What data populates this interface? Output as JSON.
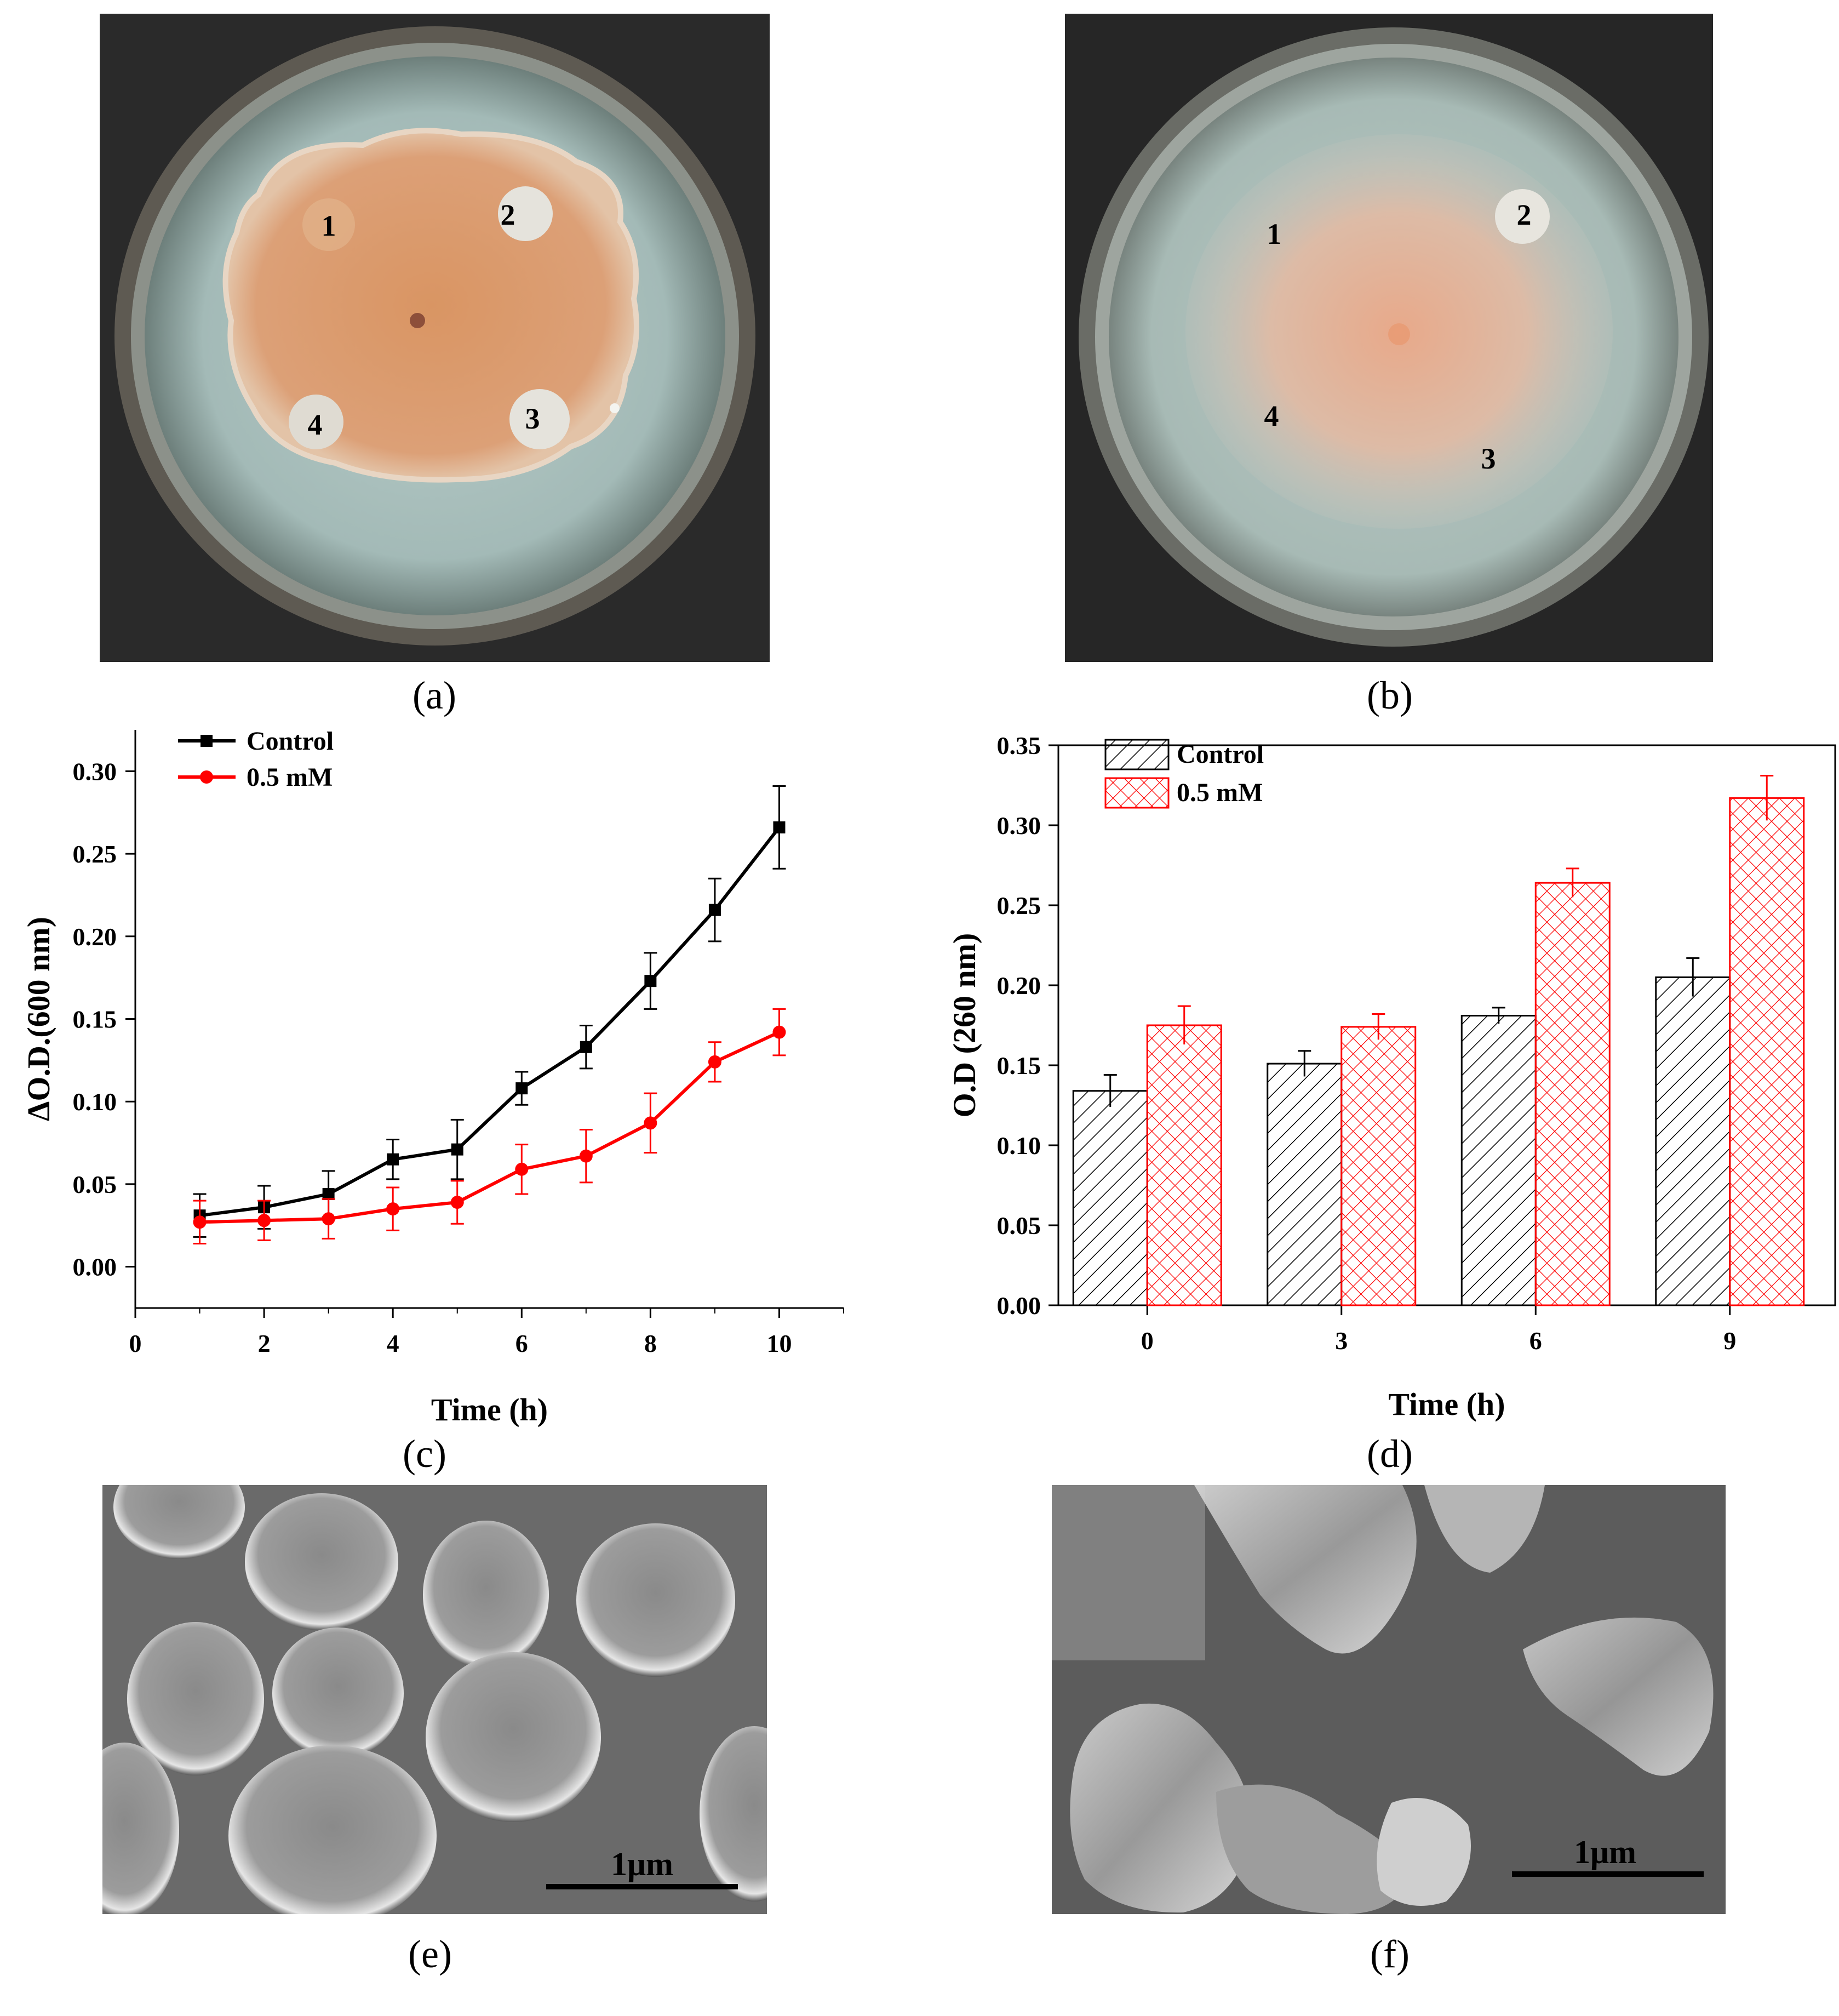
{
  "panels": {
    "a": {
      "caption": "(a)",
      "well_labels": [
        "1",
        "2",
        "3",
        "4"
      ],
      "colors": {
        "background": "#2a2a2a",
        "agar": "#a9c0bd",
        "colony": "#d9996a"
      }
    },
    "b": {
      "caption": "(b)",
      "well_labels": [
        "1",
        "2",
        "3",
        "4"
      ],
      "colors": {
        "background": "#262626",
        "agar": "#a7bcb8",
        "colony": "#e0b9a0"
      }
    },
    "c": {
      "caption": "(c)"
    },
    "d": {
      "caption": "(d)"
    },
    "e": {
      "caption": "(e)",
      "scale_bar": "1μm"
    },
    "f": {
      "caption": "(f)",
      "scale_bar": "1μm"
    }
  },
  "chart_data": [
    {
      "id": "c",
      "type": "line",
      "xlabel": "Time (h)",
      "ylabel": "ΔO.D.(600 nm)",
      "xlim": [
        0,
        11
      ],
      "ylim": [
        -0.025,
        0.325
      ],
      "xticks": [
        "0",
        "2",
        "4",
        "6",
        "8",
        "10"
      ],
      "yticks": [
        "0.00",
        "0.05",
        "0.10",
        "0.15",
        "0.20",
        "0.25",
        "0.30"
      ],
      "grid": false,
      "legend_position": "top-left",
      "x": [
        1,
        2,
        3,
        4,
        5,
        6,
        7,
        8,
        9,
        10
      ],
      "series": [
        {
          "name": "Control",
          "color": "#000000",
          "marker": "square",
          "values": [
            0.031,
            0.036,
            0.044,
            0.065,
            0.071,
            0.108,
            0.133,
            0.173,
            0.216,
            0.266
          ],
          "errors": [
            0.013,
            0.013,
            0.014,
            0.012,
            0.018,
            0.01,
            0.013,
            0.017,
            0.019,
            0.025
          ]
        },
        {
          "name": "0.5 mM",
          "color": "#ff0000",
          "marker": "circle",
          "values": [
            0.027,
            0.028,
            0.029,
            0.035,
            0.039,
            0.059,
            0.067,
            0.087,
            0.124,
            0.142
          ],
          "errors": [
            0.013,
            0.012,
            0.012,
            0.013,
            0.013,
            0.015,
            0.016,
            0.018,
            0.012,
            0.014
          ]
        }
      ]
    },
    {
      "id": "d",
      "type": "bar",
      "xlabel": "Time (h)",
      "ylabel": "O.D (260 nm)",
      "categories": [
        "0",
        "3",
        "6",
        "9"
      ],
      "ylim": [
        0,
        0.35
      ],
      "yticks": [
        "0.00",
        "0.05",
        "0.10",
        "0.15",
        "0.20",
        "0.25",
        "0.30",
        "0.35"
      ],
      "grid": false,
      "legend_position": "top-left",
      "series": [
        {
          "name": "Control",
          "color": "#000000",
          "pattern": "diagonal-hatch",
          "values": [
            0.134,
            0.151,
            0.181,
            0.205
          ],
          "errors": [
            0.01,
            0.008,
            0.005,
            0.012
          ]
        },
        {
          "name": "0.5 mM",
          "color": "#ff0000",
          "pattern": "cross-hatch",
          "values": [
            0.175,
            0.174,
            0.264,
            0.317
          ],
          "errors": [
            0.012,
            0.008,
            0.009,
            0.014
          ]
        }
      ]
    }
  ]
}
